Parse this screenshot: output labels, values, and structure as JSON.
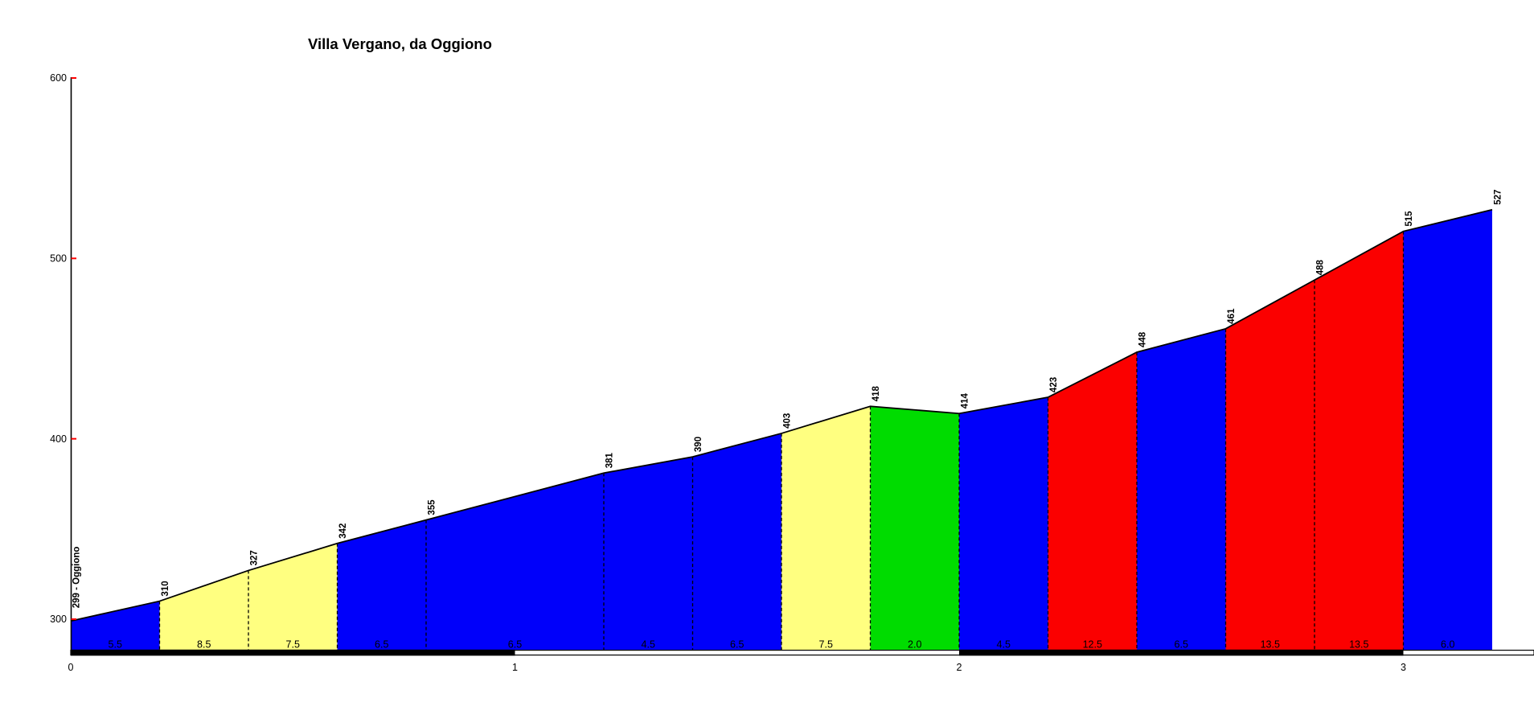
{
  "page": {
    "background": "#FFFFFF"
  },
  "chart_data": {
    "type": "area",
    "title": "Villa Vergano, da Oggiono",
    "units": {
      "x": "km",
      "y": "m"
    },
    "ylim": [
      300,
      600
    ],
    "y_ticks": [
      600,
      500,
      400,
      300
    ],
    "x_ticks": [
      0,
      1,
      2,
      3
    ],
    "total_km": 3.2,
    "start": {
      "elevation": 299,
      "label": "299 - Oggiono"
    },
    "end_elevation": 527,
    "segments": [
      {
        "from_km": 0.0,
        "to_km": 0.2,
        "start_elev": 299,
        "end_elev": 310,
        "gradient_pct": "5.5",
        "color": "blue"
      },
      {
        "from_km": 0.2,
        "to_km": 0.4,
        "start_elev": 310,
        "end_elev": 327,
        "gradient_pct": "8.5",
        "color": "yellow"
      },
      {
        "from_km": 0.4,
        "to_km": 0.6,
        "start_elev": 327,
        "end_elev": 342,
        "gradient_pct": "7.5",
        "color": "yellow"
      },
      {
        "from_km": 0.6,
        "to_km": 0.8,
        "start_elev": 342,
        "end_elev": 355,
        "gradient_pct": "6.5",
        "color": "blue"
      },
      {
        "from_km": 0.8,
        "to_km": 1.2,
        "start_elev": 355,
        "end_elev": 381,
        "gradient_pct": "6.5",
        "color": "blue"
      },
      {
        "from_km": 1.2,
        "to_km": 1.4,
        "start_elev": 381,
        "end_elev": 390,
        "gradient_pct": "4.5",
        "color": "blue"
      },
      {
        "from_km": 1.4,
        "to_km": 1.6,
        "start_elev": 390,
        "end_elev": 403,
        "gradient_pct": "6.5",
        "color": "blue"
      },
      {
        "from_km": 1.6,
        "to_km": 1.8,
        "start_elev": 403,
        "end_elev": 418,
        "gradient_pct": "7.5",
        "color": "yellow"
      },
      {
        "from_km": 1.8,
        "to_km": 2.0,
        "start_elev": 418,
        "end_elev": 414,
        "gradient_pct": "2.0",
        "color": "green"
      },
      {
        "from_km": 2.0,
        "to_km": 2.2,
        "start_elev": 414,
        "end_elev": 423,
        "gradient_pct": "4.5",
        "color": "blue"
      },
      {
        "from_km": 2.2,
        "to_km": 2.4,
        "start_elev": 423,
        "end_elev": 448,
        "gradient_pct": "12.5",
        "color": "red"
      },
      {
        "from_km": 2.4,
        "to_km": 2.6,
        "start_elev": 448,
        "end_elev": 461,
        "gradient_pct": "6.5",
        "color": "blue"
      },
      {
        "from_km": 2.6,
        "to_km": 2.8,
        "start_elev": 461,
        "end_elev": 488,
        "gradient_pct": "13.5",
        "color": "red"
      },
      {
        "from_km": 2.8,
        "to_km": 3.0,
        "start_elev": 488,
        "end_elev": 515,
        "gradient_pct": "13.5",
        "color": "red"
      },
      {
        "from_km": 3.0,
        "to_km": 3.2,
        "start_elev": 515,
        "end_elev": 527,
        "gradient_pct": "6.0",
        "color": "blue"
      }
    ],
    "palette": {
      "blue": "#0000FA",
      "yellow": "#FFFF80",
      "green": "#00DC00",
      "red": "#FB0000"
    },
    "axis": {
      "line_color": "#000000",
      "tick_color": "#FF0000",
      "label_color": "#000000"
    },
    "km_bar": {
      "colors": [
        "#000000",
        "#FFFFFF",
        "#000000",
        "#FFFFFF"
      ]
    },
    "legend_position": "none",
    "grid": false
  }
}
